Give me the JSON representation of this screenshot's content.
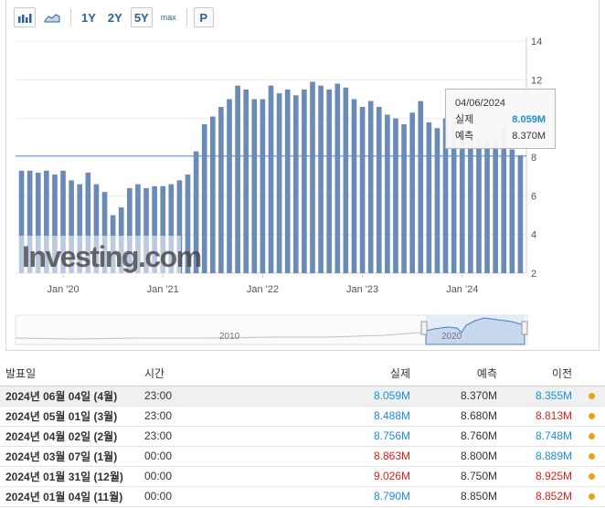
{
  "toolbar": {
    "ranges": [
      "1Y",
      "2Y",
      "5Y",
      "max"
    ],
    "selected_range": "5Y",
    "p_label": "P"
  },
  "watermark": "Investing.com",
  "navigator": {
    "labels": [
      "2010",
      "2020"
    ]
  },
  "tooltip": {
    "date": "04/06/2024",
    "actual_label": "실제",
    "actual_value": "8.059M",
    "forecast_label": "예측",
    "forecast_value": "8.370M"
  },
  "chart_data": {
    "type": "bar",
    "y_ticks": [
      2,
      4,
      6,
      8,
      10,
      12,
      14
    ],
    "ylim": [
      2,
      14
    ],
    "x_tick_labels": [
      "Jan '20",
      "Jan '21",
      "Jan '22",
      "Jan '23",
      "Jan '24"
    ],
    "reference_line_value": 8.059,
    "values": [
      7.3,
      7.3,
      7.2,
      7.3,
      7.1,
      7.3,
      6.8,
      6.6,
      7.2,
      6.6,
      6.2,
      5.0,
      5.4,
      6.4,
      6.6,
      6.4,
      6.5,
      6.5,
      6.6,
      6.8,
      7.1,
      8.3,
      9.7,
      10.1,
      10.6,
      11.0,
      11.7,
      11.5,
      11.0,
      11.0,
      11.7,
      11.3,
      11.5,
      11.2,
      11.5,
      11.9,
      11.7,
      11.5,
      11.8,
      11.6,
      11.0,
      10.6,
      10.9,
      10.6,
      10.2,
      10.0,
      9.7,
      10.3,
      10.9,
      9.8,
      9.5,
      10.0,
      9.8,
      9.2,
      8.9,
      9.0,
      8.9,
      8.9,
      9.5,
      8.4,
      8.1
    ]
  },
  "table": {
    "headers": {
      "date": "발표일",
      "time": "시간",
      "actual": "실제",
      "forecast": "예측",
      "previous": "이전"
    },
    "rows": [
      {
        "date": "2024년 06월 04일 (4월)",
        "time": "23:00",
        "actual": "8.059M",
        "actual_status": "pos",
        "forecast": "8.370M",
        "previous": "8.355M",
        "previous_status": "pos"
      },
      {
        "date": "2024년 05월 01일 (3월)",
        "time": "23:00",
        "actual": "8.488M",
        "actual_status": "pos",
        "forecast": "8.680M",
        "previous": "8.813M",
        "previous_status": "neg"
      },
      {
        "date": "2024년 04월 02일 (2월)",
        "time": "23:00",
        "actual": "8.756M",
        "actual_status": "pos",
        "forecast": "8.760M",
        "previous": "8.748M",
        "previous_status": "pos"
      },
      {
        "date": "2024년 03월 07일 (1월)",
        "time": "00:00",
        "actual": "8.863M",
        "actual_status": "neg",
        "forecast": "8.800M",
        "previous": "8.889M",
        "previous_status": "pos"
      },
      {
        "date": "2024년 01월 31일 (12월)",
        "time": "00:00",
        "actual": "9.026M",
        "actual_status": "neg",
        "forecast": "8.750M",
        "previous": "8.925M",
        "previous_status": "neg"
      },
      {
        "date": "2024년 01월 04일 (11월)",
        "time": "00:00",
        "actual": "8.790M",
        "actual_status": "pos",
        "forecast": "8.850M",
        "previous": "8.852M",
        "previous_status": "neg"
      }
    ]
  },
  "colors": {
    "bar": "#6a8bb8",
    "positive": "#1a8fd8",
    "negative": "#d91d1d",
    "dot": "#e8a317"
  }
}
